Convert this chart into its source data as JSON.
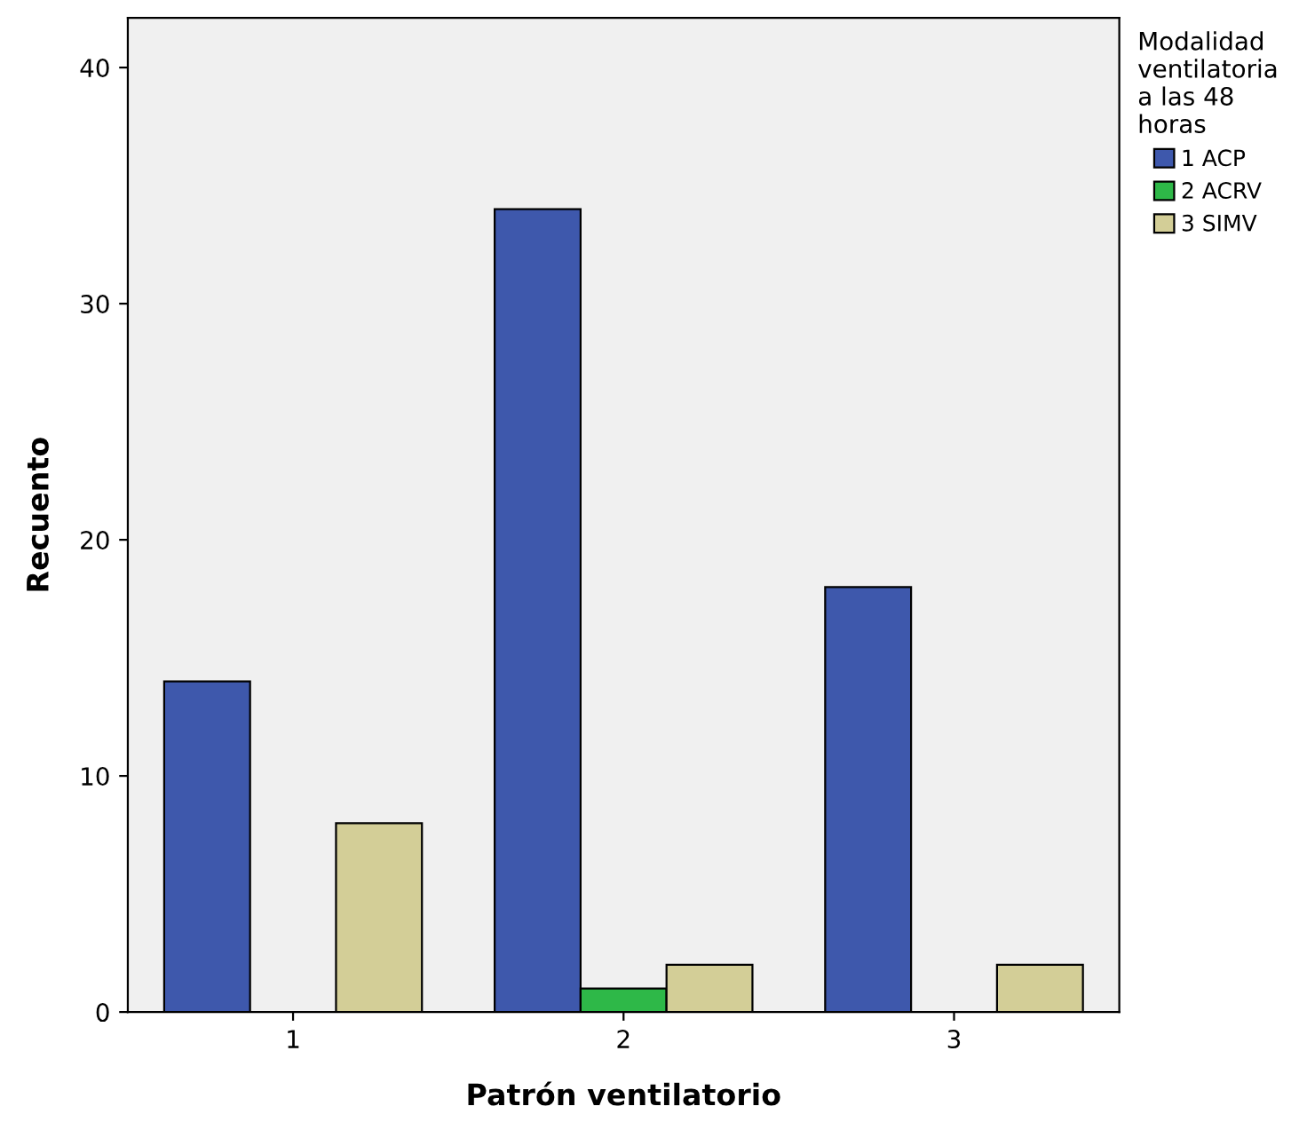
{
  "chart_data": {
    "type": "bar",
    "xlabel": "Patrón ventilatorio",
    "ylabel": "Recuento",
    "legend_title": "Modalidad\nventilatoria\na las 48\nhoras",
    "categories": [
      "1",
      "2",
      "3"
    ],
    "series": [
      {
        "name": "1 ACP",
        "color": "#3e58ac",
        "values": [
          14,
          34,
          18
        ]
      },
      {
        "name": "2 ACRV",
        "color": "#2eb848",
        "values": [
          null,
          1,
          null
        ]
      },
      {
        "name": "3 SIMV",
        "color": "#d3ce97",
        "values": [
          8,
          2,
          2
        ]
      }
    ],
    "ylim": [
      0,
      42.1
    ],
    "yticks": [
      0,
      10,
      20,
      30,
      40
    ],
    "grid": false,
    "legend": "right"
  }
}
